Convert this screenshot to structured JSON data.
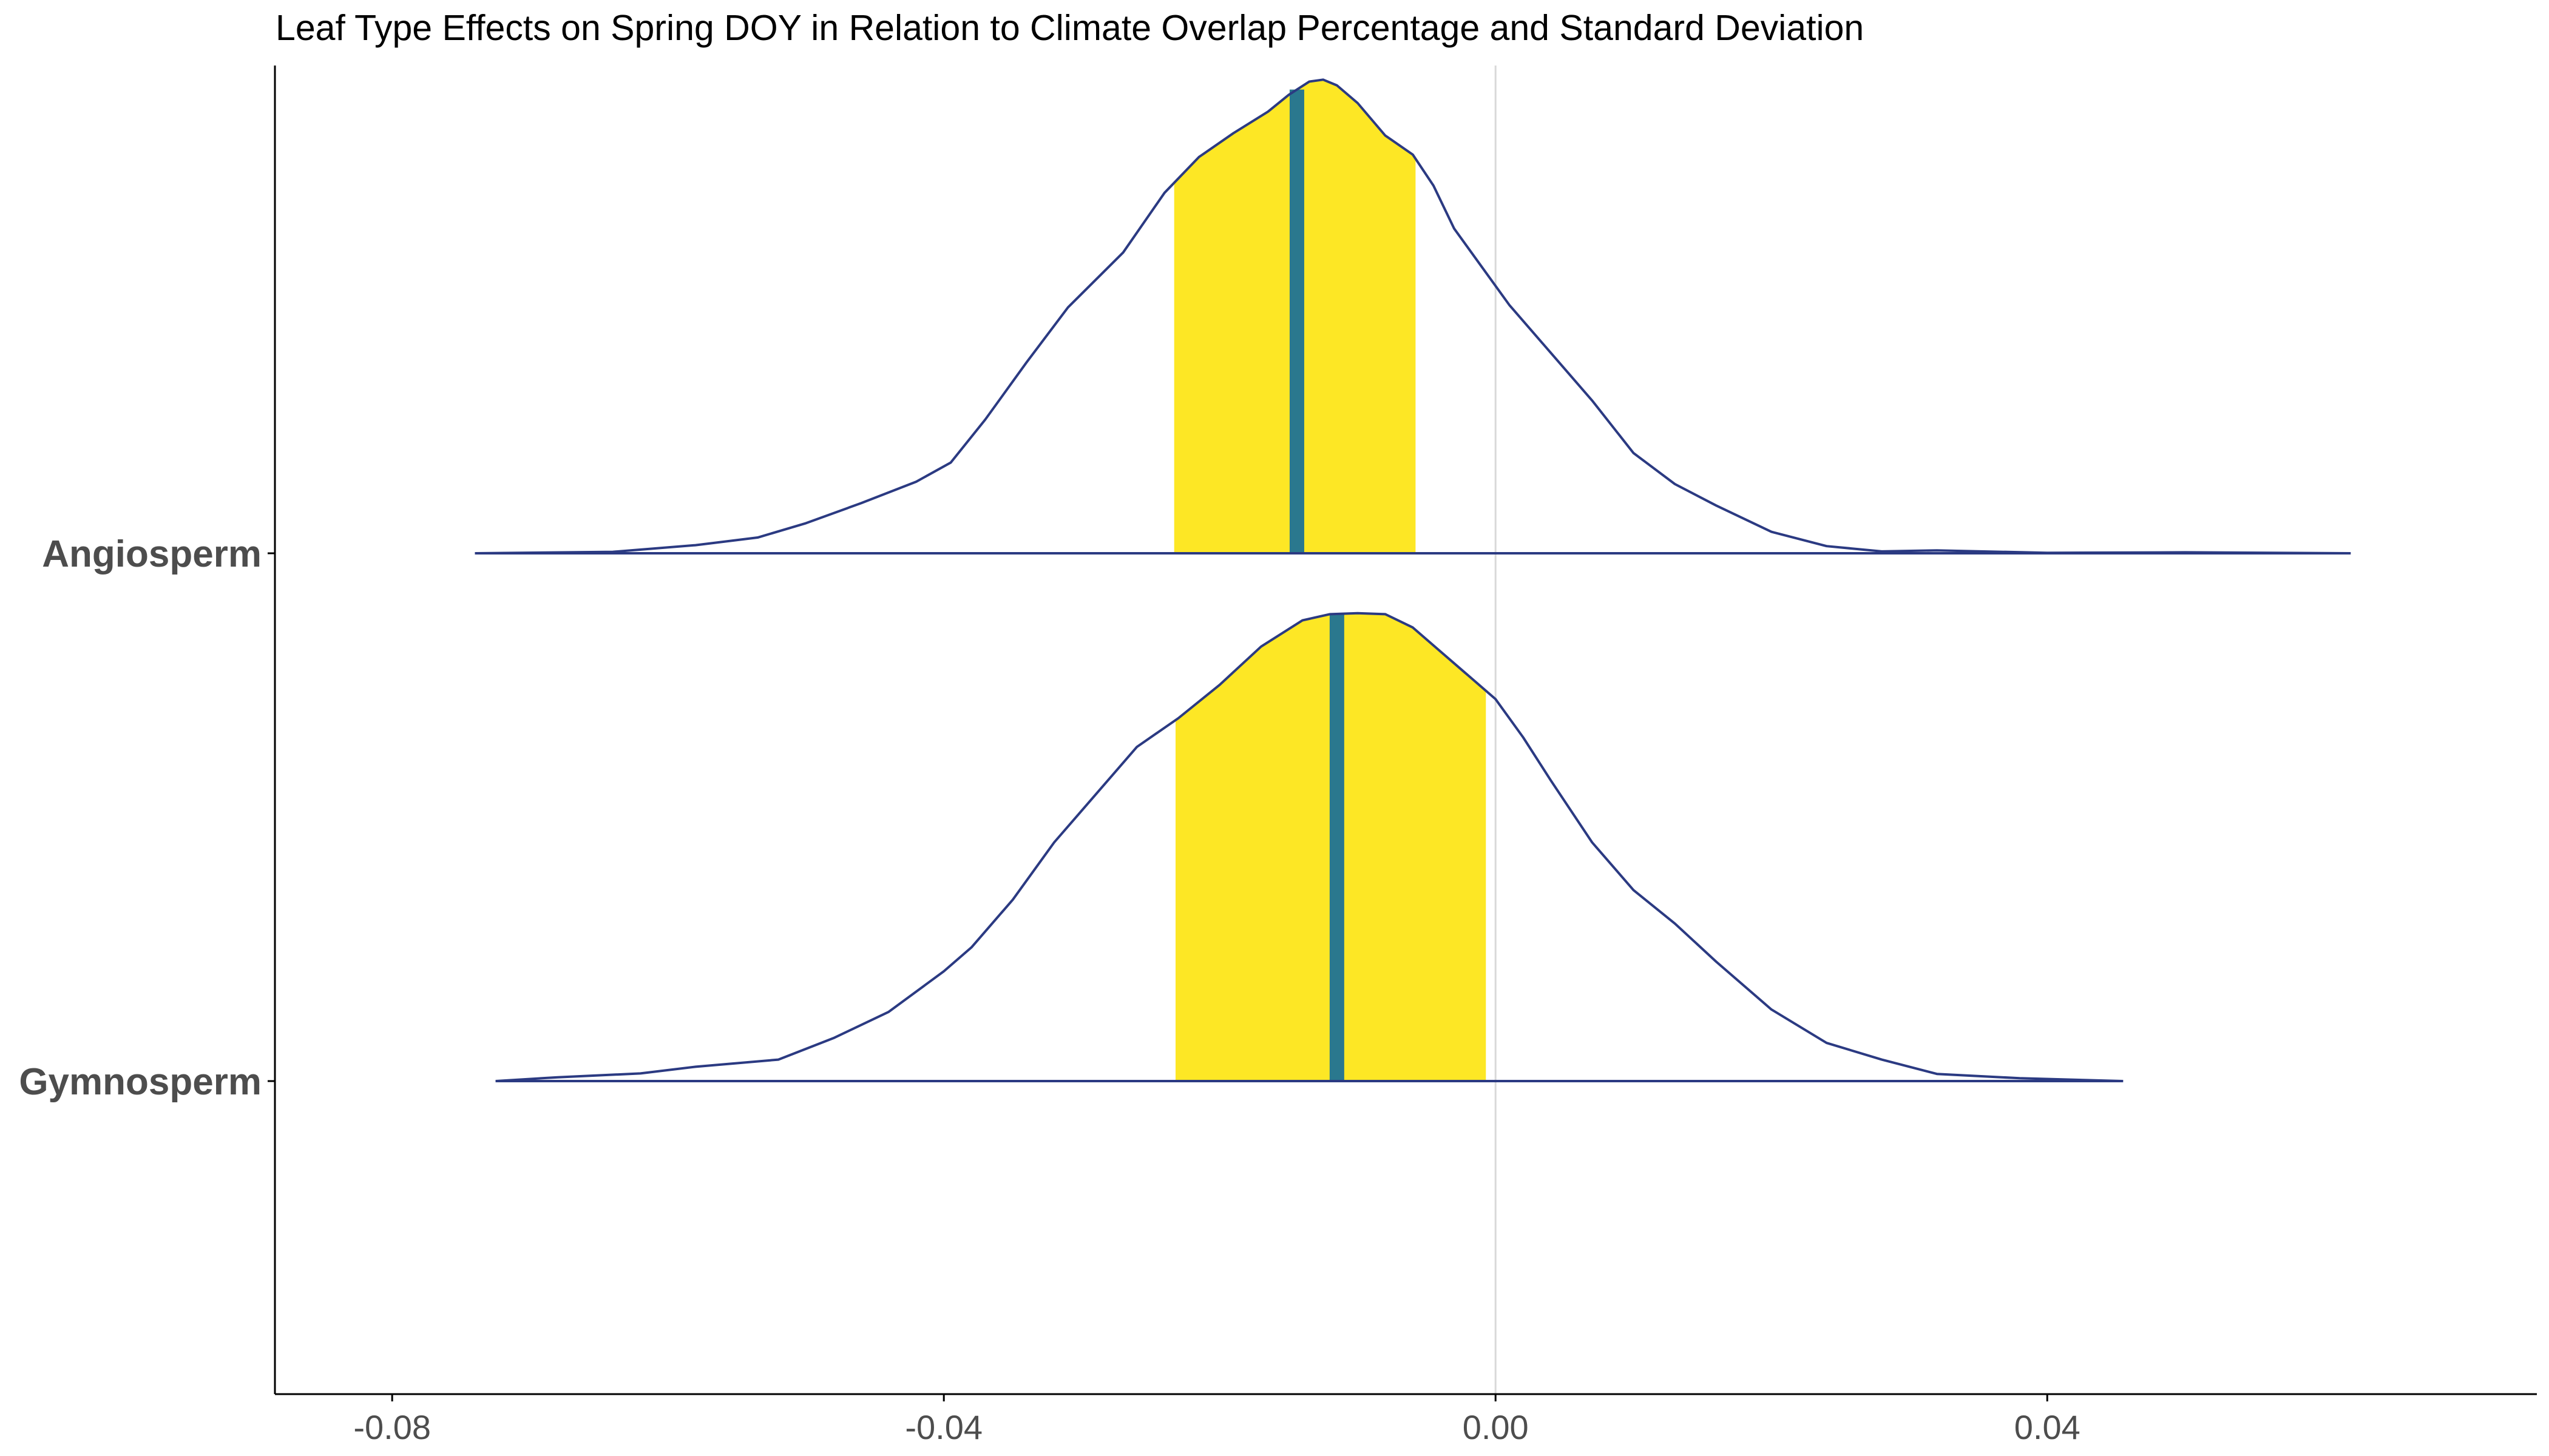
{
  "chart_data": {
    "type": "density-ridges",
    "title": "Leaf Type Effects on Spring DOY in Relation to Climate Overlap Percentage and Standard Deviation",
    "xlabel": "",
    "ylabel": "",
    "xlim": [
      -0.0885,
      0.0755
    ],
    "x_ticks": [
      -0.08,
      -0.04,
      0.0,
      0.04
    ],
    "x_tick_labels": [
      "-0.08",
      "-0.04",
      "0.00",
      "0.04"
    ],
    "reference_line_x": 0.0,
    "grid": false,
    "legend": "none",
    "colors": {
      "density_line": "#2b3a82",
      "interval_fill": "#fde725",
      "median_line": "#2a788e",
      "reference_line": "#d9d9d9",
      "axis": "#000000"
    },
    "categories": [
      "Angiosperm",
      "Gymnosperm"
    ],
    "series": [
      {
        "name": "Angiosperm",
        "interval": [
          -0.0233,
          -0.0058
        ],
        "median": -0.0144,
        "curve": [
          [
            -0.074,
            0.0
          ],
          [
            -0.064,
            0.003
          ],
          [
            -0.058,
            0.017
          ],
          [
            -0.0535,
            0.033
          ],
          [
            -0.05,
            0.063
          ],
          [
            -0.046,
            0.105
          ],
          [
            -0.042,
            0.15
          ],
          [
            -0.0395,
            0.19
          ],
          [
            -0.037,
            0.28
          ],
          [
            -0.034,
            0.4
          ],
          [
            -0.031,
            0.515
          ],
          [
            -0.027,
            0.63
          ],
          [
            -0.024,
            0.755
          ],
          [
            -0.0215,
            0.83
          ],
          [
            -0.019,
            0.88
          ],
          [
            -0.0165,
            0.925
          ],
          [
            -0.015,
            0.96
          ],
          [
            -0.0135,
            0.988
          ],
          [
            -0.0125,
            0.992
          ],
          [
            -0.0115,
            0.98
          ],
          [
            -0.01,
            0.943
          ],
          [
            -0.008,
            0.875
          ],
          [
            -0.006,
            0.835
          ],
          [
            -0.0045,
            0.77
          ],
          [
            -0.003,
            0.68
          ],
          [
            -0.001,
            0.6
          ],
          [
            0.001,
            0.52
          ],
          [
            0.004,
            0.42
          ],
          [
            0.007,
            0.32
          ],
          [
            0.01,
            0.21
          ],
          [
            0.013,
            0.145
          ],
          [
            0.016,
            0.1
          ],
          [
            0.02,
            0.045
          ],
          [
            0.024,
            0.015
          ],
          [
            0.028,
            0.004
          ],
          [
            0.032,
            0.006
          ],
          [
            0.04,
            0.001
          ],
          [
            0.05,
            0.002
          ],
          [
            0.062,
            0.0
          ]
        ]
      },
      {
        "name": "Gymnosperm",
        "interval": [
          -0.0232,
          -0.0007
        ],
        "median": -0.0115,
        "curve": [
          [
            -0.0725,
            0.0
          ],
          [
            -0.068,
            0.008
          ],
          [
            -0.062,
            0.016
          ],
          [
            -0.058,
            0.03
          ],
          [
            -0.052,
            0.045
          ],
          [
            -0.048,
            0.09
          ],
          [
            -0.044,
            0.145
          ],
          [
            -0.04,
            0.23
          ],
          [
            -0.038,
            0.28
          ],
          [
            -0.035,
            0.38
          ],
          [
            -0.032,
            0.5
          ],
          [
            -0.029,
            0.6
          ],
          [
            -0.026,
            0.7
          ],
          [
            -0.023,
            0.76
          ],
          [
            -0.02,
            0.83
          ],
          [
            -0.017,
            0.91
          ],
          [
            -0.014,
            0.965
          ],
          [
            -0.012,
            0.978
          ],
          [
            -0.01,
            0.98
          ],
          [
            -0.008,
            0.978
          ],
          [
            -0.006,
            0.95
          ],
          [
            -0.004,
            0.9
          ],
          [
            -0.002,
            0.85
          ],
          [
            0.0,
            0.8
          ],
          [
            0.002,
            0.72
          ],
          [
            0.004,
            0.63
          ],
          [
            0.007,
            0.5
          ],
          [
            0.01,
            0.4
          ],
          [
            0.013,
            0.33
          ],
          [
            0.016,
            0.25
          ],
          [
            0.02,
            0.15
          ],
          [
            0.024,
            0.08
          ],
          [
            0.028,
            0.045
          ],
          [
            0.032,
            0.015
          ],
          [
            0.038,
            0.006
          ],
          [
            0.0455,
            0.0
          ]
        ]
      }
    ]
  }
}
